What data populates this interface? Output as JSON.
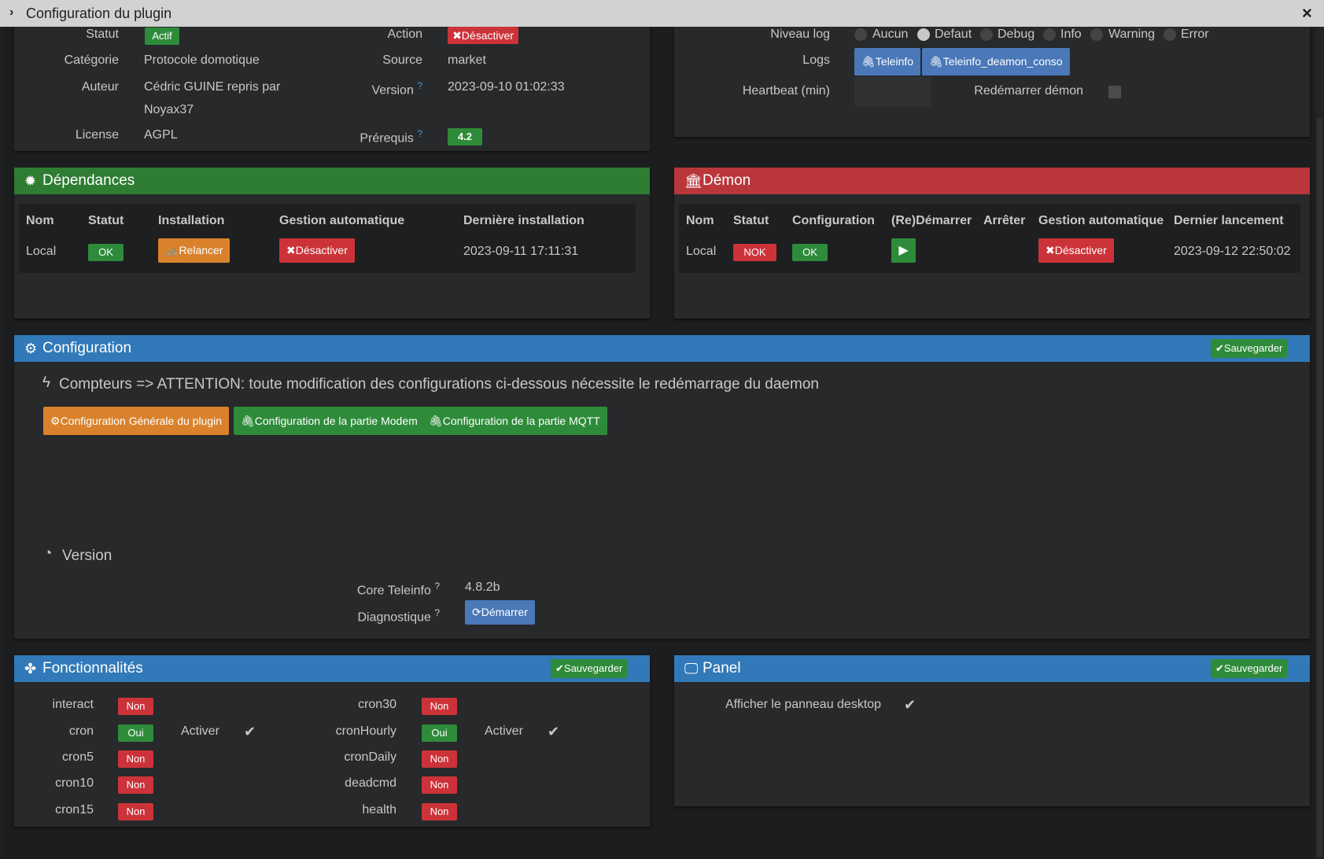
{
  "window": {
    "title": "Configuration du plugin",
    "close": "×",
    "chevron": "›"
  },
  "plugin": {
    "statut_label": "Statut",
    "statut_value": "Actif",
    "action_label": "Action",
    "action_btn": "Désactiver",
    "categorie_label": "Catégorie",
    "categorie_value": "Protocole domotique",
    "source_label": "Source",
    "source_value": "market",
    "auteur_label": "Auteur",
    "auteur_line1": "Cédric GUINE repris par",
    "auteur_line2": "Noyax37",
    "version_label": "Version",
    "version_value": "2023-09-10 01:02:33",
    "license_label": "License",
    "license_value": "AGPL",
    "prerequis_label": "Prérequis",
    "prerequis_value": "4.2"
  },
  "logs": {
    "niveau_label": "Niveau log",
    "levels": [
      "Aucun",
      "Defaut",
      "Debug",
      "Info",
      "Warning",
      "Error"
    ],
    "selected": "Defaut",
    "logs_label": "Logs",
    "log_btn1": "Teleinfo",
    "log_btn2": "Teleinfo_deamon_conso",
    "heartbeat_label": "Heartbeat (min)",
    "heartbeat_value": "",
    "restart_label": "Redémarrer démon"
  },
  "dependances": {
    "title": "Dépendances",
    "headers": [
      "Nom",
      "Statut",
      "Installation",
      "Gestion automatique",
      "Dernière installation"
    ],
    "row": {
      "nom": "Local",
      "statut": "OK",
      "installation": "Relancer",
      "gestion": "Désactiver",
      "derniere": "2023-09-11 17:11:31"
    }
  },
  "demon": {
    "title": "Démon",
    "headers": [
      "Nom",
      "Statut",
      "Configuration",
      "(Re)Démarrer",
      "Arrêter",
      "Gestion automatique",
      "Dernier lancement"
    ],
    "row": {
      "nom": "Local",
      "statut": "NOK",
      "configuration": "OK",
      "gestion": "Désactiver",
      "dernier": "2023-09-12 22:50:02"
    }
  },
  "configuration": {
    "title": "Configuration",
    "save": "Sauvegarder",
    "warning": "Compteurs => ATTENTION: toute modification des configurations ci-dessous nécessite le redémarrage du daemon",
    "tab1": "Configuration Générale du plugin",
    "tab2": "Configuration de la partie Modem",
    "tab3": "Configuration de la partie MQTT",
    "version_heading": "Version",
    "core_label": "Core Teleinfo",
    "core_value": "4.8.2b",
    "diag_label": "Diagnostique",
    "diag_btn": "Démarrer"
  },
  "fonctionnalites": {
    "title": "Fonctionnalités",
    "save": "Sauvegarder",
    "activer": "Activer",
    "left": [
      {
        "name": "interact",
        "state": "Non"
      },
      {
        "name": "cron",
        "state": "Oui"
      },
      {
        "name": "cron5",
        "state": "Non"
      },
      {
        "name": "cron10",
        "state": "Non"
      },
      {
        "name": "cron15",
        "state": "Non"
      }
    ],
    "right": [
      {
        "name": "cron30",
        "state": "Non"
      },
      {
        "name": "cronHourly",
        "state": "Oui"
      },
      {
        "name": "cronDaily",
        "state": "Non"
      },
      {
        "name": "deadcmd",
        "state": "Non"
      },
      {
        "name": "health",
        "state": "Non"
      }
    ]
  },
  "panel": {
    "title": "Panel",
    "save": "Sauvegarder",
    "desktop_label": "Afficher le panneau desktop"
  }
}
